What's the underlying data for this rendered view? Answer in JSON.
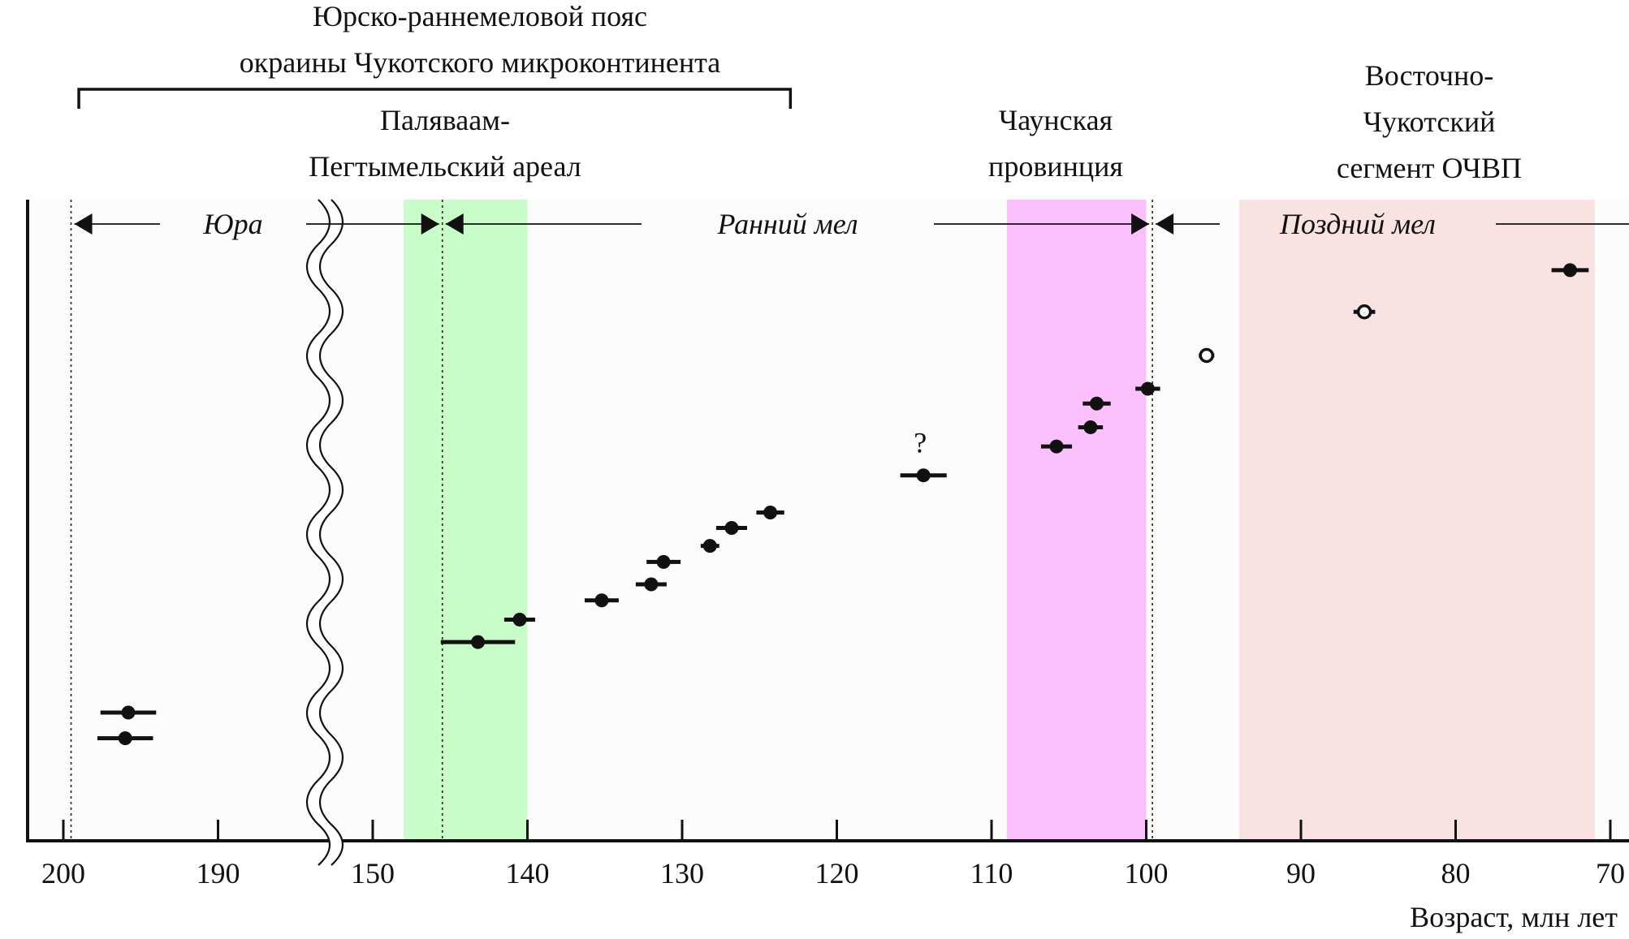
{
  "chart_data": {
    "type": "scatter",
    "title": "",
    "xlabel": "Возраст, млн лет",
    "ylabel": "",
    "x_axis": {
      "reversed": true,
      "break_between": [
        190,
        150
      ],
      "ticks": [
        200,
        190,
        150,
        140,
        130,
        120,
        110,
        100,
        90,
        80,
        70
      ],
      "tick_labels": [
        "200",
        "190",
        "150",
        "140",
        "130",
        "120",
        "110",
        "100",
        "90",
        "80",
        "70"
      ]
    },
    "header": {
      "belt_label_line1": "Юрско-раннемеловой пояс",
      "belt_label_line2": "окраины Чукотского микроконтинента",
      "belt_range": [
        199,
        123
      ]
    },
    "regions": [
      {
        "name_lines": [
          "Паляваам-",
          "Пегтымельский ареал"
        ],
        "x_range": [
          148,
          140
        ],
        "color": "#c8fcc8"
      },
      {
        "name_lines": [
          "Чаунская",
          "провинция"
        ],
        "x_range": [
          109,
          100
        ],
        "color": "#fcc0fc"
      },
      {
        "name_lines": [
          "Восточно-",
          "Чукотский",
          "сегмент ОЧВП"
        ],
        "x_range": [
          94,
          71
        ],
        "color": "#f8e2e2"
      }
    ],
    "period_boundaries": [
      199.5,
      145.5,
      99.6
    ],
    "periods": [
      {
        "label": "Юра",
        "from": 199.5,
        "to": 145.5
      },
      {
        "label": "Ранний мел",
        "from": 145.5,
        "to": 99.6
      },
      {
        "label": "Поздний мел",
        "from": 99.6,
        "to": 70
      }
    ],
    "points": [
      {
        "age": 195.8,
        "err_low": 194.0,
        "err_high": 197.6,
        "level": 0.2,
        "filled": true
      },
      {
        "age": 196.0,
        "err_low": 194.2,
        "err_high": 197.8,
        "level": 0.16,
        "filled": true
      },
      {
        "age": 143.2,
        "err_low": 140.8,
        "err_high": 145.6,
        "level": 0.31,
        "filled": true
      },
      {
        "age": 140.5,
        "err_low": 139.5,
        "err_high": 141.5,
        "level": 0.345,
        "filled": true
      },
      {
        "age": 135.2,
        "err_low": 134.1,
        "err_high": 136.3,
        "level": 0.375,
        "filled": true
      },
      {
        "age": 132.0,
        "err_low": 131.0,
        "err_high": 133.0,
        "level": 0.4,
        "filled": true
      },
      {
        "age": 131.2,
        "err_low": 130.1,
        "err_high": 132.3,
        "level": 0.435,
        "filled": true
      },
      {
        "age": 128.2,
        "err_low": 127.6,
        "err_high": 128.8,
        "level": 0.46,
        "filled": true
      },
      {
        "age": 126.8,
        "err_low": 125.8,
        "err_high": 127.8,
        "level": 0.488,
        "filled": true
      },
      {
        "age": 124.3,
        "err_low": 123.4,
        "err_high": 125.2,
        "level": 0.512,
        "filled": true
      },
      {
        "age": 114.4,
        "err_low": 112.9,
        "err_high": 115.9,
        "level": 0.57,
        "filled": true,
        "annotation": "?"
      },
      {
        "age": 105.8,
        "err_low": 104.8,
        "err_high": 106.8,
        "level": 0.615,
        "filled": true
      },
      {
        "age": 103.6,
        "err_low": 102.8,
        "err_high": 104.4,
        "level": 0.645,
        "filled": true
      },
      {
        "age": 103.2,
        "err_low": 102.3,
        "err_high": 104.1,
        "level": 0.682,
        "filled": true
      },
      {
        "age": 99.9,
        "err_low": 99.1,
        "err_high": 100.7,
        "level": 0.705,
        "filled": true
      },
      {
        "age": 96.1,
        "err_low": 95.6,
        "err_high": 96.6,
        "level": 0.757,
        "filled": false
      },
      {
        "age": 85.9,
        "err_low": 85.2,
        "err_high": 86.6,
        "level": 0.825,
        "filled": false
      },
      {
        "age": 72.6,
        "err_low": 71.4,
        "err_high": 73.8,
        "level": 0.89,
        "filled": true
      }
    ],
    "grid": false,
    "legend": "none"
  }
}
